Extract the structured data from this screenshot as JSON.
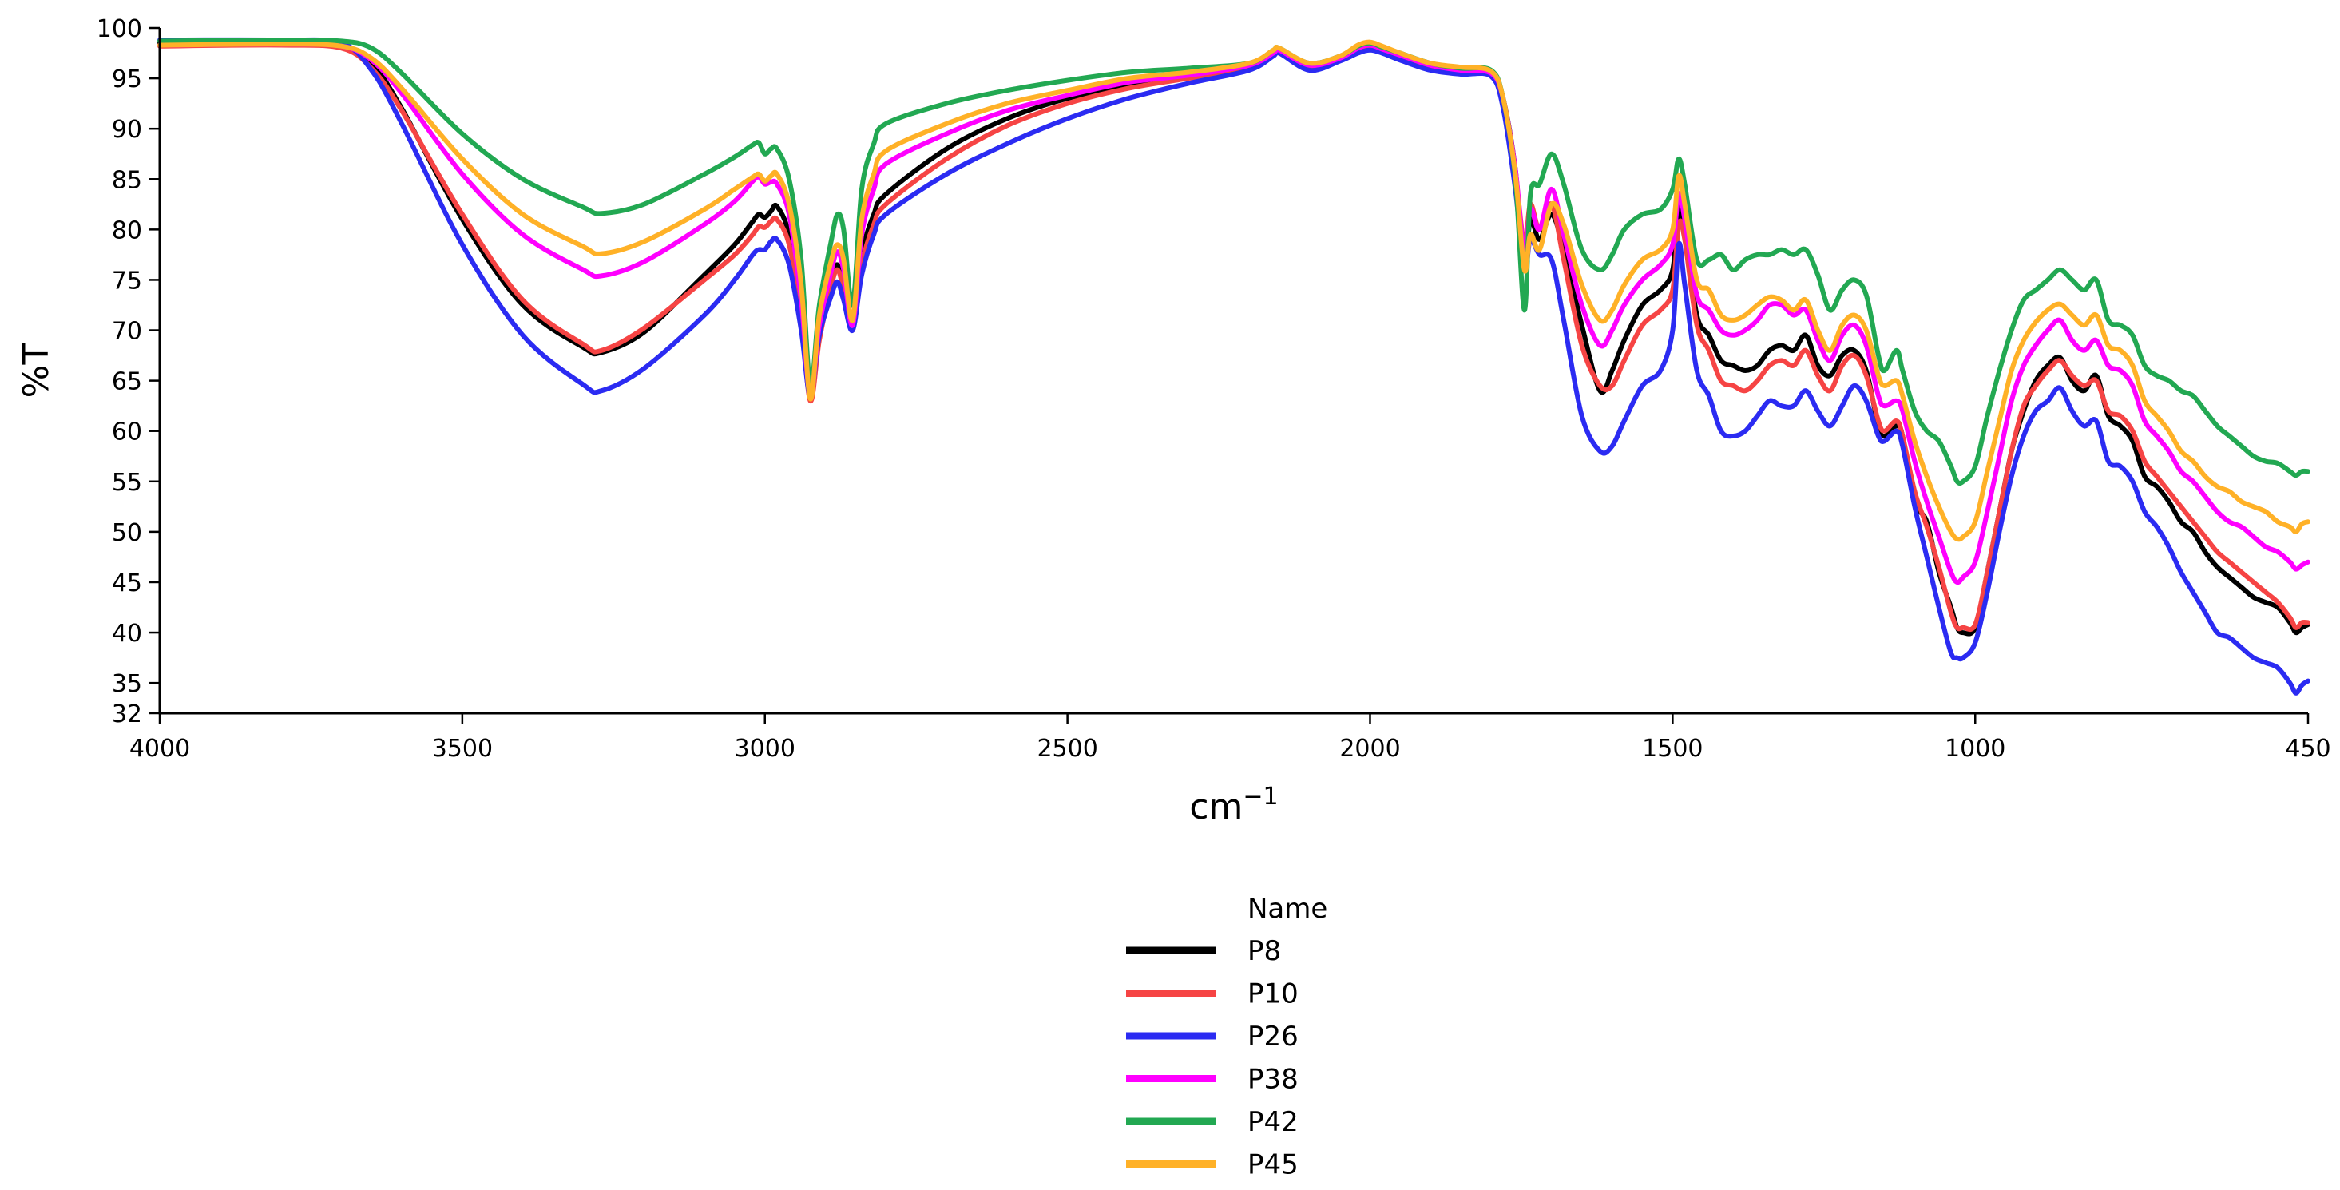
{
  "chart_data": {
    "type": "line",
    "xlabel": "cm",
    "xlabel_superscript": "−1",
    "ylabel": "%T",
    "xlim": [
      4000,
      450
    ],
    "ylim": [
      32,
      100
    ],
    "x_ticks": [
      4000,
      3500,
      3000,
      2500,
      2000,
      1500,
      1000,
      450
    ],
    "y_ticks": [
      32,
      35,
      40,
      45,
      50,
      55,
      60,
      65,
      70,
      75,
      80,
      85,
      90,
      95,
      100
    ],
    "grid": false,
    "legend": {
      "title": "Name",
      "placement": "bottom-center"
    },
    "x": [
      4000,
      3800,
      3700,
      3650,
      3600,
      3500,
      3400,
      3300,
      3270,
      3200,
      3100,
      3050,
      3020,
      3010,
      3000,
      2990,
      2980,
      2960,
      2940,
      2925,
      2910,
      2890,
      2880,
      2870,
      2855,
      2840,
      2820,
      2800,
      2700,
      2600,
      2500,
      2400,
      2300,
      2200,
      2160,
      2150,
      2100,
      2050,
      2020,
      2000,
      1980,
      1950,
      1900,
      1850,
      1800,
      1780,
      1760,
      1745,
      1735,
      1720,
      1700,
      1680,
      1650,
      1620,
      1600,
      1580,
      1550,
      1520,
      1500,
      1490,
      1480,
      1460,
      1440,
      1420,
      1400,
      1380,
      1360,
      1340,
      1320,
      1300,
      1280,
      1260,
      1240,
      1220,
      1200,
      1180,
      1160,
      1150,
      1130,
      1120,
      1100,
      1080,
      1060,
      1040,
      1030,
      1020,
      1000,
      980,
      960,
      940,
      920,
      900,
      880,
      860,
      840,
      820,
      800,
      780,
      760,
      740,
      720,
      700,
      680,
      660,
      640,
      620,
      600,
      580,
      560,
      540,
      520,
      500,
      480,
      470,
      460,
      450
    ],
    "series": [
      {
        "name": "P8",
        "color": "#000000",
        "values": [
          98.5,
          98.6,
          98.3,
          96.5,
          92,
          81,
          72.5,
          68.3,
          67.8,
          69.8,
          75.5,
          78.5,
          80.8,
          81.5,
          81.2,
          81.8,
          82.3,
          79.5,
          72,
          63.5,
          70,
          75,
          76.5,
          74.5,
          70.5,
          77.5,
          81.5,
          83.5,
          88,
          91,
          93,
          94.2,
          95.2,
          96.2,
          97.5,
          97.8,
          96.2,
          97,
          98,
          98.2,
          97.8,
          97.2,
          96.2,
          95.8,
          95.5,
          93,
          86,
          76.5,
          81,
          79,
          81.5,
          78,
          70.5,
          64,
          66,
          69,
          72.5,
          74,
          76,
          82,
          80,
          71.5,
          69.5,
          67,
          66.5,
          66,
          66.5,
          68,
          68.5,
          68,
          69.5,
          66.5,
          65.5,
          67.5,
          68,
          66,
          60.5,
          59.5,
          60.5,
          59.5,
          53,
          51,
          46,
          42.5,
          40.5,
          40,
          40.5,
          46,
          52,
          58,
          62,
          65,
          66.5,
          67.3,
          65,
          64,
          65.5,
          61.5,
          60.5,
          59,
          55.5,
          54.5,
          53,
          51,
          50,
          48,
          46.5,
          45.5,
          44.5,
          43.5,
          43,
          42.5,
          41,
          40,
          40.5,
          40.8
        ]
      },
      {
        "name": "P10",
        "color": "#f64444",
        "values": [
          98.2,
          98.3,
          98,
          96,
          91.8,
          81.5,
          73,
          68.6,
          68,
          70.2,
          75,
          77.5,
          79.5,
          80.3,
          80.2,
          80.8,
          81,
          78.5,
          71.5,
          63,
          69,
          74.5,
          76,
          74,
          70,
          76.5,
          80.5,
          82.5,
          87,
          90.3,
          92.5,
          94,
          95,
          96,
          97.3,
          97.5,
          96,
          96.8,
          97.8,
          98,
          97.6,
          97,
          96,
          95.6,
          95.3,
          92.5,
          85.5,
          78.5,
          82.5,
          80,
          82.5,
          77,
          68.5,
          64.5,
          64.5,
          67,
          70.5,
          72,
          74,
          80.5,
          79,
          70.5,
          68,
          65,
          64.5,
          64,
          65,
          66.5,
          67,
          66.5,
          68,
          65.5,
          64,
          66.5,
          67.5,
          65.5,
          61,
          60,
          61,
          59.5,
          54,
          50.5,
          46.5,
          42,
          40.5,
          40.5,
          40.8,
          46,
          52,
          58,
          62.5,
          64.5,
          66,
          67,
          65.5,
          64.5,
          65,
          62,
          61.5,
          60,
          57,
          55.5,
          54,
          52.5,
          51,
          49.5,
          48,
          47,
          46,
          45,
          44,
          43,
          41.5,
          40.5,
          41,
          41
        ]
      },
      {
        "name": "P26",
        "color": "#2b2bf2",
        "values": [
          98.8,
          98.8,
          98.5,
          95.8,
          90.5,
          78.5,
          69.5,
          64.6,
          64,
          66.2,
          71.5,
          75,
          77.5,
          78,
          78,
          78.8,
          79,
          76.5,
          70,
          63.5,
          69.5,
          73.5,
          74.8,
          73,
          70,
          75.5,
          79.5,
          81.5,
          85.5,
          88.5,
          91,
          93,
          94.5,
          95.8,
          97.2,
          97.5,
          95.8,
          96.7,
          97.5,
          97.8,
          97.5,
          96.8,
          95.8,
          95.4,
          95.2,
          92,
          84,
          76,
          79,
          77.5,
          77,
          71,
          61.5,
          58,
          58.5,
          61,
          64.5,
          66,
          70,
          78.5,
          74.5,
          66,
          63.5,
          60,
          59.5,
          60,
          61.5,
          63,
          62.5,
          62.5,
          64,
          62,
          60.5,
          62.5,
          64.5,
          63,
          59.5,
          59,
          60,
          58.5,
          52.5,
          47.5,
          42.5,
          38,
          37.5,
          37.5,
          39,
          44,
          50,
          55.5,
          59.5,
          62,
          63,
          64.3,
          62,
          60.5,
          61,
          57,
          56.5,
          55,
          52,
          50.5,
          48.5,
          46,
          44,
          42,
          40,
          39.5,
          38.5,
          37.5,
          37,
          36.5,
          35,
          34,
          34.8,
          35.2
        ]
      },
      {
        "name": "P38",
        "color": "#ff00ff",
        "values": [
          98.3,
          98.4,
          98.2,
          96.8,
          93.5,
          85.5,
          79.5,
          76,
          75.4,
          76.8,
          80.5,
          82.8,
          84.8,
          85.2,
          84.5,
          84.7,
          84.5,
          81.5,
          73,
          63.5,
          70.5,
          76,
          77.8,
          76,
          70.5,
          79.5,
          84,
          86.5,
          89.5,
          91.8,
          93.3,
          94.6,
          95.3,
          96.3,
          97.5,
          97.8,
          96.3,
          97,
          98,
          98.3,
          97.9,
          97.3,
          96.3,
          95.8,
          95.5,
          93,
          86,
          77.5,
          82,
          80,
          84,
          79.5,
          72.5,
          68.5,
          70,
          72.5,
          75,
          76.5,
          78.5,
          83.5,
          81,
          73.5,
          72,
          70,
          69.5,
          70,
          71,
          72.5,
          72.5,
          71.5,
          72,
          69,
          67,
          69.5,
          70.5,
          68.5,
          63.5,
          62.5,
          63,
          62,
          57,
          53,
          49.5,
          46,
          45,
          45.5,
          47,
          52,
          57.5,
          63,
          66.5,
          68.5,
          70,
          71,
          69,
          68,
          69,
          66.5,
          66,
          64.5,
          61,
          59.5,
          58,
          56,
          55,
          53.5,
          52,
          51,
          50.5,
          49.5,
          48.5,
          48,
          47,
          46.3,
          46.7,
          47
        ]
      },
      {
        "name": "P42",
        "color": "#22a852",
        "values": [
          98.7,
          98.8,
          98.7,
          98,
          95.5,
          89.5,
          85,
          82.2,
          81.6,
          82.5,
          85.5,
          87.2,
          88.4,
          88.6,
          87.5,
          88,
          88,
          85,
          77,
          64.5,
          72.5,
          79,
          81.5,
          80,
          72.5,
          84,
          88.5,
          90.5,
          92.5,
          93.8,
          94.8,
          95.6,
          96,
          96.5,
          97.8,
          98,
          96.5,
          97.2,
          98.2,
          98.5,
          98.1,
          97.5,
          96.5,
          96,
          95.8,
          93,
          85,
          72,
          83.5,
          84.5,
          87.5,
          84.5,
          78,
          76,
          77.5,
          80,
          81.5,
          82,
          84,
          87,
          84.5,
          77,
          77,
          77.5,
          76,
          77,
          77.5,
          77.5,
          78,
          77.5,
          78,
          75.5,
          72,
          74,
          75,
          73.5,
          67.5,
          66,
          68,
          66,
          62,
          60,
          59,
          56.5,
          55,
          55,
          56.5,
          61.5,
          66,
          70,
          73,
          74,
          75,
          76,
          75,
          74,
          75,
          71,
          70.5,
          69.5,
          66.5,
          65.5,
          65,
          64,
          63.5,
          62,
          60.5,
          59.5,
          58.5,
          57.5,
          57,
          56.8,
          56,
          55.6,
          56,
          56
        ]
      },
      {
        "name": "P45",
        "color": "#ffb127",
        "values": [
          98.3,
          98.4,
          98.2,
          97,
          94,
          87,
          81.5,
          78.3,
          77.6,
          78.8,
          82,
          84,
          85.2,
          85.5,
          84.8,
          85.3,
          85.5,
          82.5,
          74.5,
          63.2,
          71.5,
          77,
          78.5,
          77,
          71,
          81,
          85.5,
          87.8,
          90.5,
          92.5,
          93.8,
          95,
          95.6,
          96.5,
          97.8,
          98,
          96.5,
          97.2,
          98.3,
          98.6,
          98.2,
          97.5,
          96.5,
          96.1,
          95.7,
          93,
          85.5,
          76,
          79.5,
          78,
          82.5,
          80.5,
          74.5,
          71,
          72,
          74.5,
          77,
          78,
          80,
          85.3,
          82.5,
          75,
          74,
          71.5,
          71,
          71.5,
          72.5,
          73.3,
          73,
          72,
          73,
          70,
          68,
          70.5,
          71.5,
          70,
          65.5,
          64.5,
          65,
          63.5,
          59,
          55.5,
          52.5,
          50,
          49.3,
          49.5,
          51,
          56,
          61,
          66,
          69,
          70.8,
          72,
          72.6,
          71.5,
          70.5,
          71.5,
          68.5,
          68,
          66.5,
          63,
          61.5,
          60,
          58,
          57,
          55.5,
          54.5,
          54,
          53,
          52.5,
          52,
          51,
          50.5,
          50,
          50.8,
          51
        ]
      }
    ]
  }
}
